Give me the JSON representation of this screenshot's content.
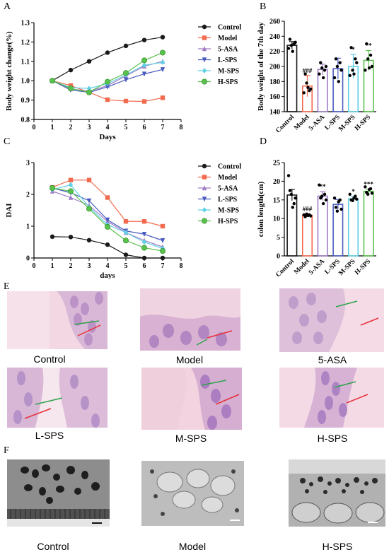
{
  "panels": {
    "A": "A",
    "B": "B",
    "C": "C",
    "D": "D",
    "E": "E",
    "F": "F"
  },
  "colors": {
    "Control": "#1a1a1a",
    "Model": "#f26b4f",
    "5-ASA": "#a07cc5",
    "L-SPS": "#4a5bbf",
    "M-SPS": "#5fd0e6",
    "H-SPS": "#5ac14c"
  },
  "groups": [
    "Control",
    "Model",
    "5-ASA",
    "L-SPS",
    "M-SPS",
    "H-SPS"
  ],
  "chart_data": [
    {
      "id": "A",
      "type": "line",
      "ylabel": "Body weight change(%)",
      "xlabel": "Days",
      "xlim": [
        0,
        8
      ],
      "ylim": [
        0.8,
        1.3
      ],
      "xticks": [
        0,
        1,
        2,
        3,
        4,
        5,
        6,
        7,
        8
      ],
      "yticks": [
        "0.8",
        "0.9",
        "1.0",
        "1.1",
        "1.2",
        "1.3"
      ],
      "x": [
        1,
        2,
        3,
        4,
        5,
        6,
        7
      ],
      "series": [
        {
          "name": "Control",
          "marker": "circle",
          "values": [
            1.0,
            1.055,
            1.1,
            1.145,
            1.18,
            1.21,
            1.225
          ]
        },
        {
          "name": "Model",
          "marker": "square",
          "values": [
            1.0,
            0.975,
            0.94,
            0.902,
            0.895,
            0.893,
            0.912
          ]
        },
        {
          "name": "5-ASA",
          "marker": "triangle",
          "values": [
            1.0,
            0.958,
            0.945,
            0.975,
            1.025,
            1.075,
            1.1
          ]
        },
        {
          "name": "L-SPS",
          "marker": "tri-down",
          "values": [
            1.0,
            0.952,
            0.94,
            0.968,
            1.005,
            1.035,
            1.058
          ]
        },
        {
          "name": "M-SPS",
          "marker": "diamond",
          "values": [
            1.0,
            0.965,
            0.96,
            0.985,
            1.03,
            1.08,
            1.095
          ]
        },
        {
          "name": "H-SPS",
          "marker": "circle-open",
          "values": [
            1.0,
            0.96,
            0.94,
            0.995,
            1.04,
            1.105,
            1.145
          ]
        }
      ]
    },
    {
      "id": "B",
      "type": "bar",
      "ylabel": "Body weight of the 7th day",
      "ylim": [
        140,
        260
      ],
      "yticks": [
        "140",
        "160",
        "180",
        "200",
        "220",
        "240",
        "260"
      ],
      "categories": [
        "Control",
        "Model",
        "5-ASA",
        "L-SPS",
        "M-SPS",
        "H-SPS"
      ],
      "values": [
        228,
        174,
        196,
        197,
        200,
        208
      ],
      "errors": [
        5,
        14,
        7,
        14,
        16,
        13
      ],
      "points": [
        [
          224,
          236,
          228,
          220,
          230,
          232
        ],
        [
          165,
          190,
          178,
          172,
          168,
          170
        ],
        [
          190,
          205,
          198,
          185,
          195,
          200
        ],
        [
          185,
          210,
          200,
          180,
          205,
          195
        ],
        [
          188,
          225,
          195,
          190,
          210,
          205
        ],
        [
          195,
          230,
          210,
          198,
          215,
          200
        ]
      ],
      "significance": [
        "",
        "###",
        "",
        "",
        "*",
        "**"
      ]
    },
    {
      "id": "C",
      "type": "line",
      "ylabel": "DAI",
      "xlabel": "days",
      "xlim": [
        0,
        8
      ],
      "ylim": [
        0,
        3
      ],
      "xticks": [
        0,
        1,
        2,
        3,
        4,
        5,
        6,
        7,
        8
      ],
      "yticks": [
        "0",
        "1",
        "2",
        "3"
      ],
      "x": [
        1,
        2,
        3,
        4,
        5,
        6,
        7
      ],
      "series": [
        {
          "name": "Control",
          "marker": "circle",
          "values": [
            0.67,
            0.66,
            0.56,
            0.42,
            0.1,
            0.0,
            0.0
          ]
        },
        {
          "name": "Model",
          "marker": "square",
          "values": [
            2.22,
            2.45,
            2.45,
            1.9,
            1.15,
            1.15,
            1.0
          ]
        },
        {
          "name": "5-ASA",
          "marker": "triangle",
          "values": [
            2.1,
            1.9,
            1.65,
            1.15,
            0.8,
            0.55,
            0.35
          ]
        },
        {
          "name": "L-SPS",
          "marker": "tri-down",
          "values": [
            2.2,
            2.05,
            1.8,
            1.2,
            0.85,
            0.75,
            0.55
          ]
        },
        {
          "name": "M-SPS",
          "marker": "diamond",
          "values": [
            2.15,
            2.3,
            1.6,
            1.05,
            0.8,
            0.5,
            0.3
          ]
        },
        {
          "name": "H-SPS",
          "marker": "circle-open",
          "values": [
            2.2,
            2.1,
            1.55,
            0.98,
            0.55,
            0.32,
            0.22
          ]
        }
      ]
    },
    {
      "id": "D",
      "type": "bar",
      "ylabel": "colon length(cm)",
      "ylim": [
        0,
        25
      ],
      "yticks": [
        "0",
        "5",
        "10",
        "15",
        "20",
        "25"
      ],
      "categories": [
        "Control",
        "Model",
        "5-ASA",
        "L-SPS",
        "M-SPS",
        "H-SPS"
      ],
      "values": [
        16.3,
        10.9,
        16.0,
        13.8,
        15.3,
        17.3
      ],
      "errors": [
        1.5,
        0.4,
        1.2,
        1.3,
        0.6,
        0.6
      ],
      "points": [
        [
          21.5,
          17.5,
          16.5,
          13.0,
          14.0,
          15.5
        ],
        [
          11.0,
          10.5,
          11.2,
          10.8,
          11.0,
          10.7
        ],
        [
          19.0,
          15.5,
          16.0,
          14.0,
          16.5,
          15.0
        ],
        [
          15.5,
          13.0,
          12.0,
          14.5,
          15.0,
          12.5
        ],
        [
          16.5,
          15.0,
          14.8,
          15.5,
          16.0,
          15.2
        ],
        [
          18.5,
          17.0,
          16.5,
          17.8,
          18.0,
          16.8
        ]
      ],
      "significance": [
        "",
        "###",
        "**",
        "",
        "*",
        "***"
      ]
    }
  ],
  "histology": {
    "labels": [
      "Control",
      "Model",
      "5-ASA",
      "L-SPS",
      "M-SPS",
      "H-SPS"
    ]
  },
  "em": {
    "labels": [
      "Control",
      "Model",
      "H-SPS"
    ]
  }
}
